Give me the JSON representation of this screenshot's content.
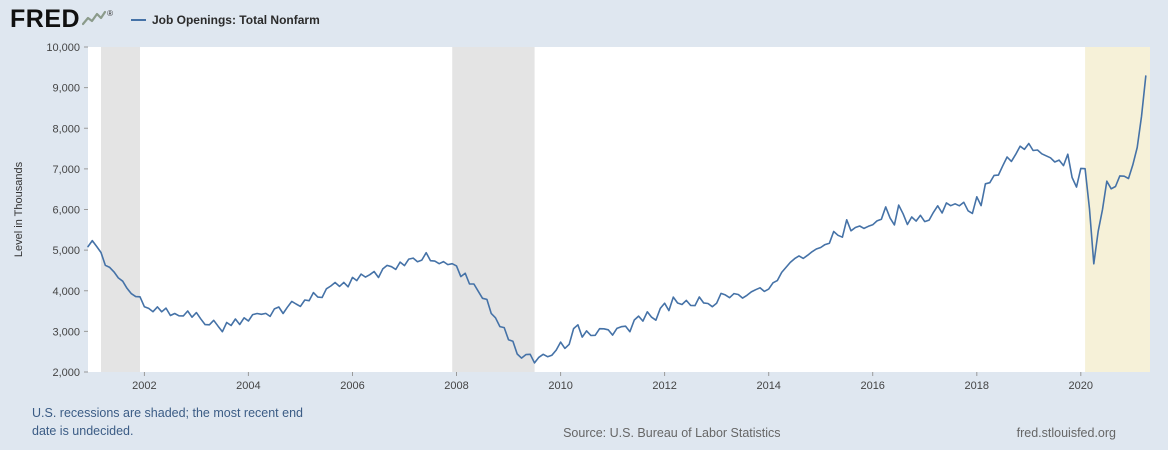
{
  "header": {
    "logo_text": "FRED",
    "registered_mark": "®",
    "legend_label": "Job Openings: Total Nonfarm"
  },
  "footer": {
    "recession_note": "U.S. recessions are shaded; the most recent end date is undecided.",
    "source": "Source: U.S. Bureau of Labor Statistics",
    "site": "fred.stlouisfed.org"
  },
  "chart_data": {
    "type": "line",
    "title": "Job Openings: Total Nonfarm",
    "ylabel": "Level in Thousands",
    "units": "Thousands",
    "frequency": "Monthly",
    "legend_position": "top-left",
    "grid": false,
    "x_start": 2000.9167,
    "x_step_months": 1,
    "xlim": [
      2000.9167,
      2021.33
    ],
    "ylim": [
      2000,
      10000
    ],
    "ytick_values": [
      2000,
      3000,
      4000,
      5000,
      6000,
      7000,
      8000,
      9000,
      10000
    ],
    "ytick_labels": [
      "2,000",
      "3,000",
      "4,000",
      "5,000",
      "6,000",
      "7,000",
      "8,000",
      "9,000",
      "10,000"
    ],
    "xtick_values": [
      2002,
      2004,
      2006,
      2008,
      2010,
      2012,
      2014,
      2016,
      2018,
      2020
    ],
    "xtick_labels": [
      "2002",
      "2004",
      "2006",
      "2008",
      "2010",
      "2012",
      "2014",
      "2016",
      "2018",
      "2020"
    ],
    "line_color": "#4572a7",
    "plot_background": "#ffffff",
    "page_background": "#dfe7f0",
    "recessions": [
      {
        "start": 2001.167,
        "end": 2001.917,
        "fill": "#e4e4e4"
      },
      {
        "start": 2007.917,
        "end": 2009.5,
        "fill": "#e4e4e4"
      },
      {
        "start": 2020.083,
        "end": null,
        "fill": "#f6f1d8"
      }
    ],
    "values": [
      5088,
      5234,
      5089,
      4942,
      4626,
      4575,
      4465,
      4317,
      4236,
      4060,
      3928,
      3857,
      3852,
      3606,
      3566,
      3484,
      3602,
      3483,
      3573,
      3390,
      3439,
      3383,
      3382,
      3502,
      3350,
      3463,
      3310,
      3166,
      3162,
      3272,
      3127,
      2993,
      3218,
      3144,
      3305,
      3169,
      3335,
      3256,
      3414,
      3439,
      3420,
      3442,
      3369,
      3554,
      3599,
      3439,
      3596,
      3738,
      3675,
      3614,
      3773,
      3756,
      3955,
      3844,
      3833,
      4049,
      4116,
      4204,
      4108,
      4206,
      4096,
      4329,
      4250,
      4409,
      4336,
      4394,
      4474,
      4325,
      4538,
      4625,
      4591,
      4526,
      4706,
      4618,
      4778,
      4803,
      4714,
      4754,
      4937,
      4740,
      4730,
      4666,
      4717,
      4644,
      4666,
      4612,
      4348,
      4432,
      4167,
      4166,
      3988,
      3814,
      3788,
      3442,
      3335,
      3118,
      3093,
      2796,
      2758,
      2444,
      2342,
      2428,
      2436,
      2225,
      2362,
      2436,
      2377,
      2414,
      2538,
      2737,
      2582,
      2683,
      3068,
      3163,
      2858,
      3012,
      2898,
      2903,
      3065,
      3064,
      3038,
      2908,
      3072,
      3114,
      3127,
      2992,
      3281,
      3376,
      3253,
      3481,
      3348,
      3275,
      3566,
      3693,
      3512,
      3844,
      3699,
      3662,
      3763,
      3640,
      3635,
      3846,
      3700,
      3686,
      3608,
      3692,
      3934,
      3899,
      3829,
      3929,
      3907,
      3818,
      3889,
      3971,
      4026,
      4073,
      3985,
      4040,
      4196,
      4251,
      4452,
      4575,
      4699,
      4791,
      4859,
      4797,
      4876,
      4959,
      5028,
      5065,
      5137,
      5170,
      5459,
      5366,
      5319,
      5746,
      5475,
      5557,
      5594,
      5534,
      5587,
      5623,
      5719,
      5761,
      6063,
      5789,
      5620,
      6109,
      5894,
      5631,
      5816,
      5714,
      5857,
      5702,
      5738,
      5929,
      6090,
      5914,
      6163,
      6093,
      6140,
      6090,
      6177,
      5969,
      5904,
      6312,
      6096,
      6633,
      6660,
      6840,
      6848,
      7077,
      7293,
      7183,
      7361,
      7559,
      7479,
      7625,
      7452,
      7465,
      7372,
      7322,
      7272,
      7170,
      7216,
      7081,
      7361,
      6787,
      6552,
      7012,
      7004,
      6011,
      4664,
      5466,
      6001,
      6697,
      6510,
      6567,
      6826,
      6820,
      6764,
      7099,
      7526,
      8288,
      9286
    ]
  }
}
